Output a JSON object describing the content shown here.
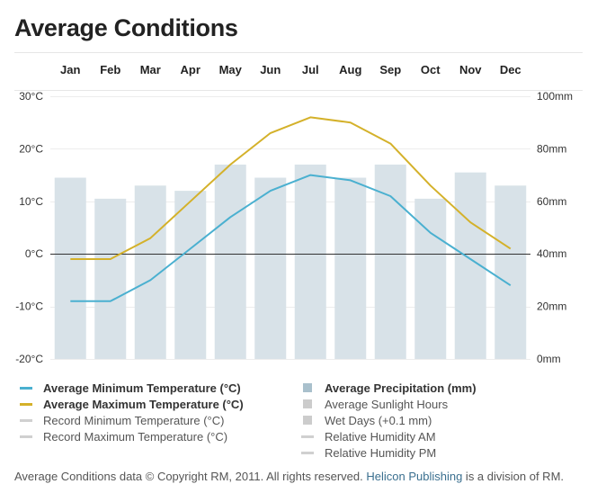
{
  "title": "Average Conditions",
  "chart_data": {
    "type": "bar+line",
    "categories": [
      "Jan",
      "Feb",
      "Mar",
      "Apr",
      "May",
      "Jun",
      "Jul",
      "Aug",
      "Sep",
      "Oct",
      "Nov",
      "Dec"
    ],
    "precipitation_mm": [
      69,
      61,
      66,
      64,
      74,
      69,
      74,
      69,
      74,
      61,
      71,
      66
    ],
    "series": [
      {
        "name": "Average Minimum Temperature (°C)",
        "color": "#4ab0d0",
        "values": [
          -9,
          -9,
          -5,
          1,
          7,
          12,
          15,
          14,
          11,
          4,
          -1,
          -6
        ]
      },
      {
        "name": "Average Maximum Temperature (°C)",
        "color": "#d4b12a",
        "values": [
          -1,
          -1,
          3,
          10,
          17,
          23,
          26,
          25,
          21,
          13,
          6,
          1
        ]
      }
    ],
    "bar_color": "#d8e2e8",
    "left_axis": {
      "ylim": [
        -20,
        30
      ],
      "ticks": [
        "-20°C",
        "-10°C",
        "0°C",
        "10°C",
        "20°C",
        "30°C"
      ]
    },
    "right_axis": {
      "ylim": [
        0,
        100
      ],
      "ticks": [
        "0mm",
        "20mm",
        "40mm",
        "60mm",
        "80mm",
        "100mm"
      ]
    },
    "grid": true
  },
  "legend": {
    "left": [
      {
        "label": "Average Minimum Temperature (°C)",
        "color": "#4ab0d0",
        "bold": true
      },
      {
        "label": "Average Maximum Temperature (°C)",
        "color": "#d4b12a",
        "bold": true
      },
      {
        "label": "Record Minimum Temperature (°C)",
        "color": "#d0d0d0",
        "bold": false
      },
      {
        "label": "Record Maximum Temperature (°C)",
        "color": "#d0d0d0",
        "bold": false
      }
    ],
    "right": [
      {
        "label": "Average Precipitation (mm)",
        "color": "#a9c0cc",
        "bold": true,
        "kind": "box"
      },
      {
        "label": "Average Sunlight Hours",
        "color": "#cccccc",
        "bold": false,
        "kind": "box"
      },
      {
        "label": "Wet Days (+0.1 mm)",
        "color": "#cccccc",
        "bold": false,
        "kind": "box"
      },
      {
        "label": "Relative Humidity AM",
        "color": "#d0d0d0",
        "bold": false,
        "kind": "line"
      },
      {
        "label": "Relative Humidity PM",
        "color": "#d0d0d0",
        "bold": false,
        "kind": "line"
      }
    ]
  },
  "footer": {
    "text1": "Average Conditions data © Copyright RM, 2011. All rights reserved. ",
    "link": "Helicon Publishing",
    "text2": " is a division of RM."
  }
}
